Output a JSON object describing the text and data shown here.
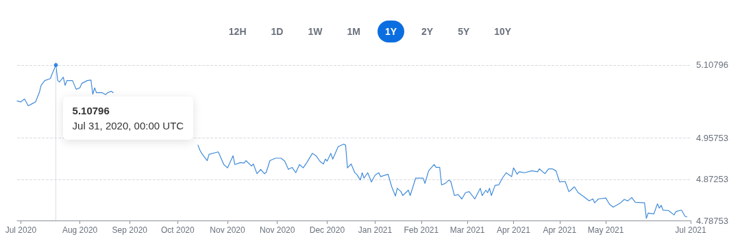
{
  "chart_data": {
    "type": "line",
    "color": "#3f8ad8",
    "marker": "none",
    "line_style": "solid",
    "grid": "y",
    "xlim": [
      "2020-07-10",
      "2021-07-10"
    ],
    "xticks": [
      {
        "value": "2020-07-12",
        "label": "Jul 2020"
      },
      {
        "value": "2020-08-13",
        "label": "Aug 2020"
      },
      {
        "value": "2020-09-09",
        "label": "Sep 2020"
      },
      {
        "value": "2020-10-05",
        "label": "Oct 2020"
      },
      {
        "value": "2020-11-01",
        "label": "Nov 2020"
      },
      {
        "value": "2020-11-28",
        "label": "Nov 2020"
      },
      {
        "value": "2020-12-25",
        "label": "Dec 2020"
      },
      {
        "value": "2021-01-20",
        "label": "Jan 2021"
      },
      {
        "value": "2021-02-14",
        "label": "Feb 2021"
      },
      {
        "value": "2021-03-11",
        "label": "Mar 2021"
      },
      {
        "value": "2021-04-05",
        "label": "Apr 2021"
      },
      {
        "value": "2021-04-30",
        "label": "Apr 2021"
      },
      {
        "value": "2021-05-25",
        "label": "May 2021"
      },
      {
        "value": "2021-07-10",
        "label": "Jul 2021"
      }
    ],
    "ylim": [
      4.78753,
      5.115
    ],
    "yticks": [
      4.78753,
      4.87253,
      4.95753,
      5.10796
    ],
    "ref_lines": [
      {
        "axis": "x",
        "value": "2020-07-31",
        "color": "#d9dde3"
      }
    ],
    "annotations": [
      "12H",
      "1D",
      "1W",
      "1M",
      "1Y",
      "2Y",
      "5Y",
      "10Y",
      "5.10796",
      "Jul 31, 2020, 00:00 UTC"
    ],
    "x": [
      "2020-07-10",
      "2020-07-12",
      "2020-07-14",
      "2020-07-16",
      "2020-07-18",
      "2020-07-20",
      "2020-07-22",
      "2020-07-23",
      "2020-07-25",
      "2020-07-28",
      "2020-07-29",
      "2020-07-31",
      "2020-08-01",
      "2020-08-02",
      "2020-08-04",
      "2020-08-05",
      "2020-08-06",
      "2020-08-09",
      "2020-08-11",
      "2020-08-13",
      "2020-08-14",
      "2020-08-17",
      "2020-08-19",
      "2020-08-20",
      "2020-08-21",
      "2020-08-22",
      "2020-08-25",
      "2020-08-27",
      "2020-08-28",
      "2020-08-30",
      "2020-08-31",
      "2020-09-15",
      "2020-10-16",
      "2020-10-17",
      "2020-10-18",
      "2020-10-21",
      "2020-10-22",
      "2020-10-27",
      "2020-10-30",
      "2020-11-01",
      "2020-11-04",
      "2020-11-05",
      "2020-11-08",
      "2020-11-10",
      "2020-11-11",
      "2020-11-14",
      "2020-11-15",
      "2020-11-17",
      "2020-11-19",
      "2020-11-21",
      "2020-11-22",
      "2020-11-24",
      "2020-11-27",
      "2020-11-30",
      "2020-12-02",
      "2020-12-04",
      "2020-12-06",
      "2020-12-08",
      "2020-12-10",
      "2020-12-12",
      "2020-12-14",
      "2020-12-17",
      "2020-12-19",
      "2020-12-21",
      "2020-12-23",
      "2020-12-24",
      "2020-12-25",
      "2020-12-27",
      "2020-12-28",
      "2020-12-31",
      "2021-01-03",
      "2021-01-04",
      "2021-01-05",
      "2021-01-07",
      "2021-01-09",
      "2021-01-10",
      "2021-01-12",
      "2021-01-13",
      "2021-01-14",
      "2021-01-16",
      "2021-01-18",
      "2021-01-20",
      "2021-01-22",
      "2021-01-23",
      "2021-01-27",
      "2021-01-29",
      "2021-01-31",
      "2021-02-01",
      "2021-02-03",
      "2021-02-04",
      "2021-02-07",
      "2021-02-08",
      "2021-02-11",
      "2021-02-15",
      "2021-02-16",
      "2021-02-18",
      "2021-02-21",
      "2021-02-22",
      "2021-02-24",
      "2021-02-25",
      "2021-02-27",
      "2021-03-01",
      "2021-03-02",
      "2021-03-04",
      "2021-03-06",
      "2021-03-08",
      "2021-03-10",
      "2021-03-12",
      "2021-03-15",
      "2021-03-18",
      "2021-03-19",
      "2021-03-21",
      "2021-03-22",
      "2021-03-23",
      "2021-03-24",
      "2021-03-26",
      "2021-03-28",
      "2021-03-30",
      "2021-04-01",
      "2021-04-04",
      "2021-04-05",
      "2021-04-07",
      "2021-04-08",
      "2021-04-11",
      "2021-04-15",
      "2021-04-18",
      "2021-04-19",
      "2021-04-22",
      "2021-04-24",
      "2021-04-26",
      "2021-04-28",
      "2021-04-30",
      "2021-05-03",
      "2021-05-05",
      "2021-05-06",
      "2021-05-08",
      "2021-05-10",
      "2021-05-13",
      "2021-05-16",
      "2021-05-18",
      "2021-05-19",
      "2021-05-21",
      "2021-05-25",
      "2021-05-27",
      "2021-05-29",
      "2021-06-02",
      "2021-06-04",
      "2021-06-06",
      "2021-06-08",
      "2021-06-10",
      "2021-06-15",
      "2021-06-16",
      "2021-06-17",
      "2021-06-20",
      "2021-06-22",
      "2021-06-23",
      "2021-06-24",
      "2021-06-25",
      "2021-06-28",
      "2021-07-01",
      "2021-07-02",
      "2021-07-05",
      "2021-07-07",
      "2021-07-08"
    ],
    "values": [
      5.034,
      5.032,
      5.038,
      5.024,
      5.028,
      5.032,
      5.051,
      5.066,
      5.076,
      5.08,
      5.09,
      5.10796,
      5.076,
      5.073,
      5.083,
      5.066,
      5.076,
      5.076,
      5.058,
      5.061,
      5.07,
      5.076,
      5.077,
      5.048,
      5.061,
      5.051,
      5.051,
      5.047,
      5.051,
      5.054,
      5.051,
      null,
      4.943,
      4.933,
      4.926,
      4.911,
      4.924,
      4.929,
      4.903,
      4.896,
      4.921,
      4.903,
      4.907,
      4.906,
      4.911,
      4.9,
      4.904,
      4.884,
      4.893,
      4.884,
      4.887,
      4.911,
      4.916,
      4.916,
      4.91,
      4.893,
      4.897,
      4.886,
      4.903,
      4.896,
      4.907,
      4.926,
      4.921,
      4.91,
      4.904,
      4.914,
      4.91,
      4.926,
      4.914,
      4.94,
      4.945,
      4.943,
      4.896,
      4.904,
      4.886,
      4.883,
      4.871,
      4.886,
      4.875,
      4.886,
      4.867,
      4.881,
      4.886,
      4.878,
      4.883,
      4.857,
      4.838,
      4.854,
      4.847,
      4.839,
      4.85,
      4.839,
      4.875,
      4.875,
      4.864,
      4.89,
      4.903,
      4.897,
      4.897,
      4.861,
      4.864,
      4.871,
      4.868,
      4.839,
      4.841,
      4.832,
      4.845,
      4.847,
      4.832,
      4.854,
      4.839,
      4.85,
      4.845,
      4.854,
      4.839,
      4.86,
      4.861,
      4.875,
      4.886,
      4.878,
      4.896,
      4.883,
      4.888,
      4.886,
      4.89,
      4.888,
      4.894,
      4.884,
      4.894,
      4.894,
      4.89,
      4.867,
      4.868,
      4.847,
      4.85,
      4.857,
      4.845,
      4.837,
      4.828,
      4.832,
      4.824,
      4.832,
      4.834,
      4.821,
      4.815,
      4.824,
      4.831,
      4.828,
      4.835,
      4.825,
      4.824,
      4.792,
      4.803,
      4.801,
      4.822,
      4.813,
      4.819,
      4.809,
      4.808,
      4.799,
      4.806,
      4.809,
      4.796,
      4.795
    ]
  }
}
